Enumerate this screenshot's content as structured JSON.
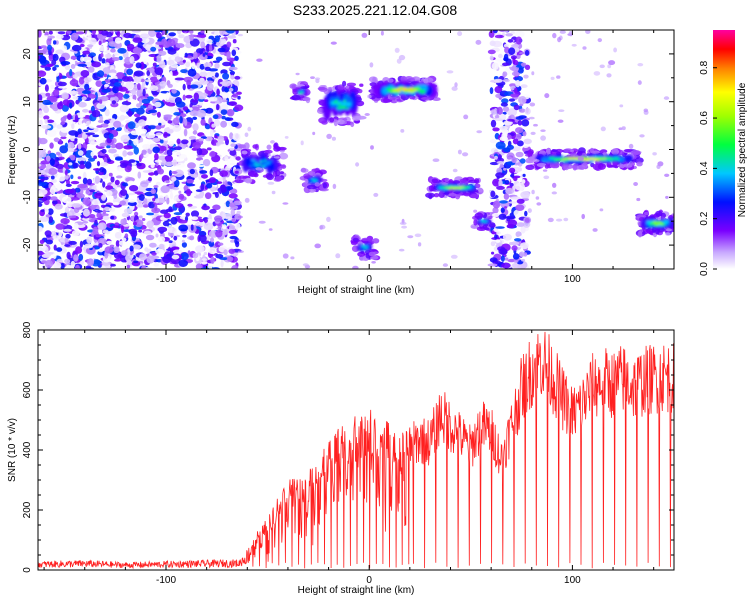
{
  "title": "S233.2025.221.12.04.G08",
  "chart_data": [
    {
      "type": "heatmap",
      "xlabel": "Height of straight line (km)",
      "ylabel": "Frequency (Hz)",
      "xlim": [
        -163,
        150
      ],
      "ylim": [
        -25,
        25
      ],
      "xticks": [
        -100,
        0,
        100
      ],
      "yticks": [
        -20,
        -10,
        0,
        10,
        20
      ],
      "colorbar": {
        "label": "Normalized spectral amplitude",
        "range": [
          0,
          0.95
        ],
        "ticks": [
          0.0,
          0.2,
          0.4,
          0.6,
          0.8
        ]
      },
      "features": [
        {
          "x_start": -163,
          "x_end": -64,
          "freq_start": -25,
          "freq_end": 25,
          "amplitude": 0.15
        },
        {
          "x_start": -64,
          "x_end": -43,
          "freq_start": -6,
          "freq_end": 0,
          "amplitude": 0.45
        },
        {
          "x_start": -36,
          "x_end": -31,
          "freq_start": 11,
          "freq_end": 13,
          "amplitude": 0.5
        },
        {
          "x_start": -31,
          "x_end": -23,
          "freq_start": -8,
          "freq_end": -5,
          "amplitude": 0.45
        },
        {
          "x_start": -23,
          "x_end": -5,
          "freq_start": 6,
          "freq_end": 13,
          "amplitude": 0.55
        },
        {
          "x_start": -6,
          "x_end": 2,
          "freq_start": -22,
          "freq_end": -19,
          "amplitude": 0.45
        },
        {
          "x_start": 3,
          "x_end": 32,
          "freq_start": 11,
          "freq_end": 14,
          "amplitude": 0.8
        },
        {
          "x_start": 31,
          "x_end": 54,
          "freq_start": -9,
          "freq_end": -7,
          "amplitude": 0.7
        },
        {
          "x_start": 53,
          "x_end": 60,
          "freq_start": -16,
          "freq_end": -14,
          "amplitude": 0.45
        },
        {
          "x_start": 60,
          "x_end": 78,
          "freq_start": -25,
          "freq_end": 25,
          "amplitude": 0.15
        },
        {
          "x_start": 79,
          "x_end": 132,
          "freq_start": -3,
          "freq_end": -1,
          "amplitude": 0.75
        },
        {
          "x_start": 134,
          "x_end": 150,
          "freq_start": -17,
          "freq_end": -14,
          "amplitude": 0.65
        }
      ]
    },
    {
      "type": "line",
      "xlabel": "Height of straight line (km)",
      "ylabel": "SNR (10 * v/v)",
      "xlim": [
        -163,
        150
      ],
      "ylim": [
        0,
        800
      ],
      "xticks": [
        -100,
        0,
        100
      ],
      "yticks": [
        0,
        200,
        400,
        600,
        800
      ],
      "series": [
        {
          "color": "#ff2020",
          "x": [
            -163,
            -140,
            -120,
            -100,
            -80,
            -64,
            -60,
            -55,
            -50,
            -45,
            -40,
            -35,
            -30,
            -25,
            -20,
            -15,
            -10,
            -5,
            0,
            5,
            10,
            15,
            20,
            25,
            30,
            35,
            40,
            45,
            50,
            55,
            60,
            65,
            70,
            75,
            80,
            85,
            90,
            95,
            100,
            105,
            110,
            115,
            120,
            125,
            130,
            135,
            140,
            145,
            150
          ],
          "values": [
            25,
            28,
            22,
            25,
            28,
            30,
            60,
            120,
            160,
            220,
            280,
            300,
            300,
            340,
            400,
            440,
            470,
            480,
            500,
            480,
            460,
            420,
            440,
            470,
            460,
            560,
            520,
            480,
            440,
            520,
            500,
            400,
            520,
            650,
            720,
            760,
            700,
            620,
            560,
            600,
            660,
            680,
            670,
            690,
            660,
            680,
            690,
            700,
            690
          ],
          "troughs": "oscillating to near-zero from about x=-55 onward"
        }
      ]
    }
  ]
}
